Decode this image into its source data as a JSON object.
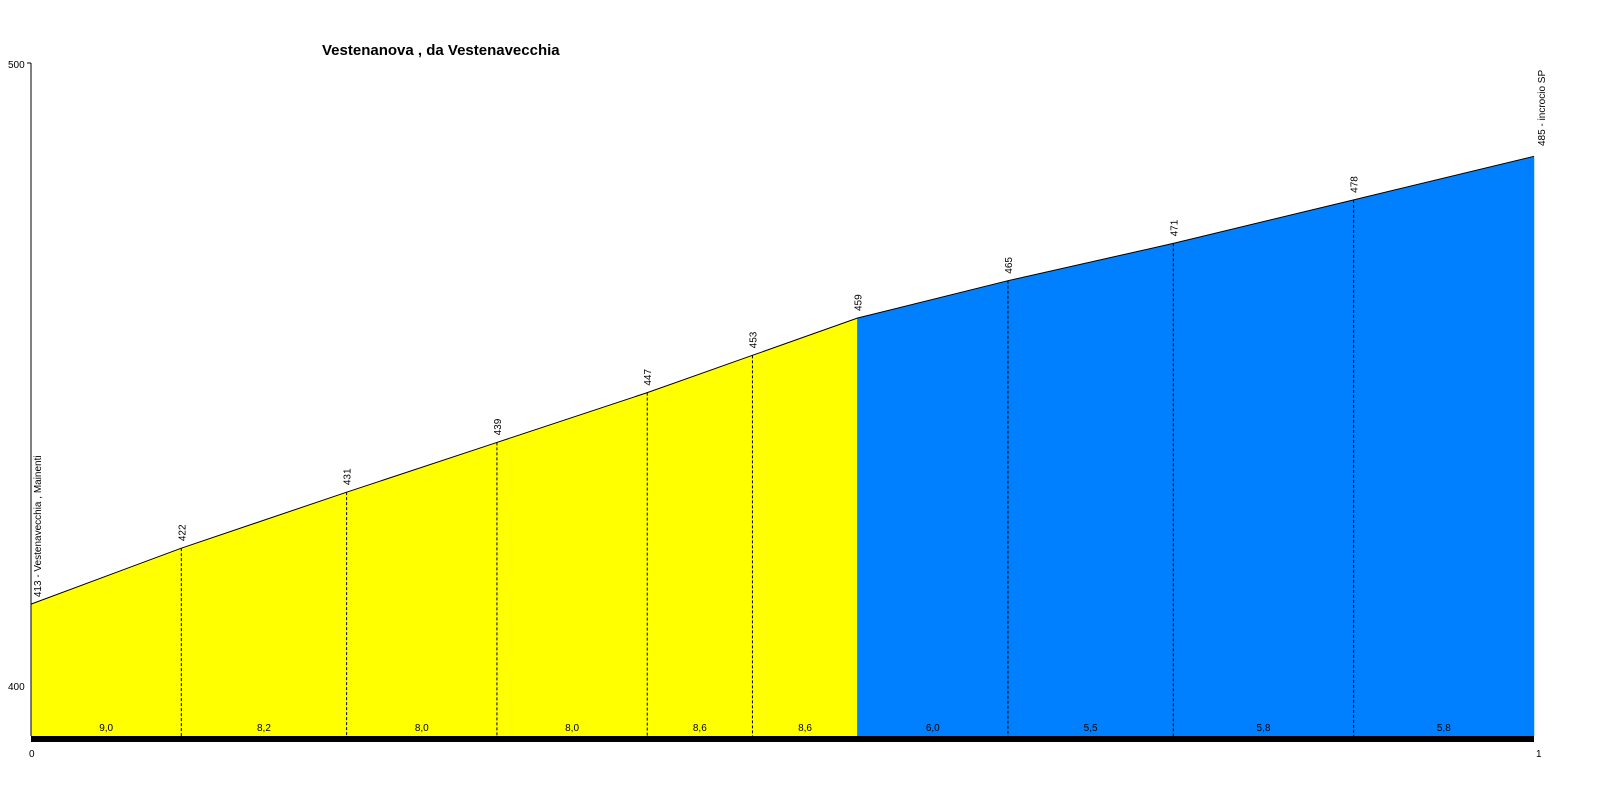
{
  "chart_data": {
    "type": "area",
    "title": "Vestenanova , da Vestenavecchia",
    "x_axis": {
      "start_label": "0",
      "end_label": "1",
      "range": [
        0,
        1
      ]
    },
    "y_axis": {
      "min_label": "400",
      "max_label": "500",
      "range": [
        400,
        500
      ]
    },
    "start_label": "413 - Vestenavecchia , Mainenti",
    "end_label": "485 - incrocio SP",
    "points": [
      {
        "x": 0.0,
        "elev": 413
      },
      {
        "x": 0.1,
        "elev": 422,
        "label": "422"
      },
      {
        "x": 0.21,
        "elev": 431,
        "label": "431"
      },
      {
        "x": 0.31,
        "elev": 439,
        "label": "439"
      },
      {
        "x": 0.41,
        "elev": 447,
        "label": "447"
      },
      {
        "x": 0.48,
        "elev": 453,
        "label": "453"
      },
      {
        "x": 0.55,
        "elev": 459,
        "label": "459"
      },
      {
        "x": 0.65,
        "elev": 465,
        "label": "465"
      },
      {
        "x": 0.76,
        "elev": 471,
        "label": "471"
      },
      {
        "x": 0.88,
        "elev": 478,
        "label": "478"
      },
      {
        "x": 1.0,
        "elev": 485
      }
    ],
    "segments": [
      {
        "grade": "9,0",
        "color": "#ffff00"
      },
      {
        "grade": "8,2",
        "color": "#ffff00"
      },
      {
        "grade": "8,0",
        "color": "#ffff00"
      },
      {
        "grade": "8,0",
        "color": "#ffff00"
      },
      {
        "grade": "8,6",
        "color": "#ffff00"
      },
      {
        "grade": "8,6",
        "color": "#ffff00"
      },
      {
        "grade": "6,0",
        "color": "#0080ff"
      },
      {
        "grade": "5,5",
        "color": "#0080ff"
      },
      {
        "grade": "5,8",
        "color": "#0080ff"
      },
      {
        "grade": "5,8",
        "color": "#0080ff"
      }
    ]
  }
}
